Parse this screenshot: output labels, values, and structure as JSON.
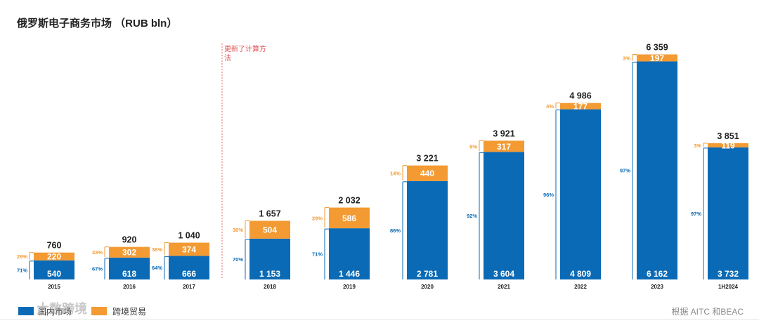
{
  "chart_data": {
    "type": "bar",
    "stacked": true,
    "title": "俄罗斯电子商务市场 （RUB bln）",
    "categories": [
      "2015",
      "2016",
      "2017",
      "2018",
      "2019",
      "2020",
      "2021",
      "2022",
      "2023",
      "1H2024"
    ],
    "series": [
      {
        "name": "国内市场",
        "color": "#0a6ab6",
        "values": [
          540,
          618,
          666,
          1153,
          1446,
          2781,
          3604,
          4809,
          6162,
          3732
        ],
        "labels": [
          "540",
          "618",
          "666",
          "1 153",
          "1 446",
          "2 781",
          "3 604",
          "4 809",
          "6 162",
          "3 732"
        ],
        "shares": [
          "71%",
          "67%",
          "64%",
          "70%",
          "71%",
          "86%",
          "92%",
          "96%",
          "97%",
          "97%"
        ]
      },
      {
        "name": "跨境贸易",
        "color": "#f39a32",
        "values": [
          220,
          302,
          374,
          504,
          586,
          440,
          317,
          177,
          197,
          119
        ],
        "labels": [
          "220",
          "302",
          "374",
          "504",
          "586",
          "440",
          "317",
          "177",
          "197",
          "119"
        ],
        "shares": [
          "29%",
          "33%",
          "36%",
          "30%",
          "29%",
          "14%",
          "8%",
          "4%",
          "3%",
          "3%"
        ]
      }
    ],
    "totals": [
      760,
      920,
      1040,
      1657,
      2032,
      3221,
      3921,
      4986,
      6359,
      3851
    ],
    "total_labels": [
      "760",
      "920",
      "1 040",
      "1 657",
      "2 032",
      "3 221",
      "3 921",
      "4 986",
      "6 359",
      "3 851"
    ],
    "annotation": {
      "text_lines": [
        "更新了计算方",
        "法"
      ],
      "before_category": "2018",
      "color": "#e2484b"
    },
    "source": "根据 AITC 和BEAC",
    "watermark": "大数跨境",
    "legend_position": "bottom-left"
  }
}
